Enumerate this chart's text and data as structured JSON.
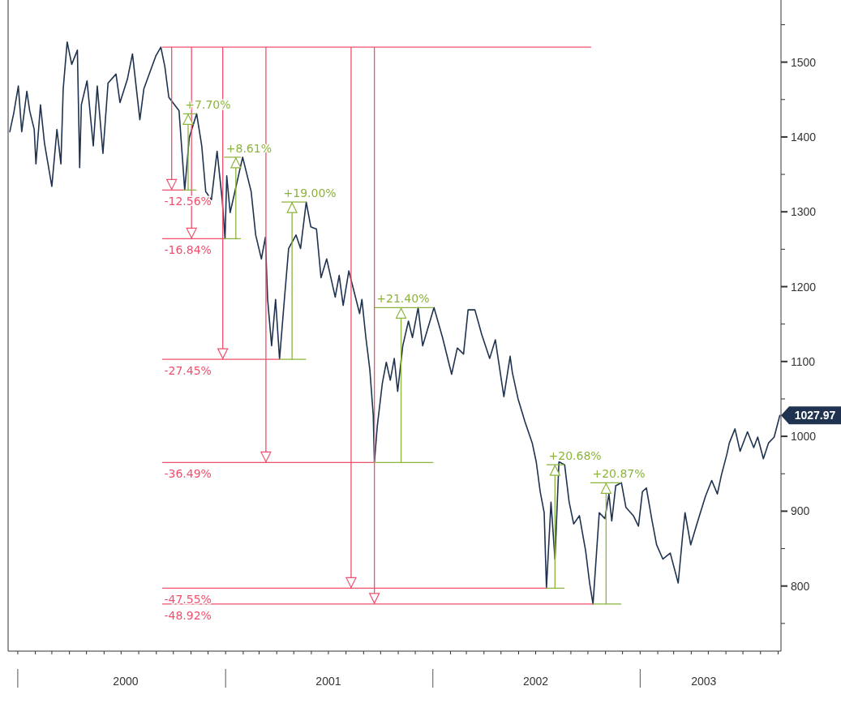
{
  "chart_data": {
    "type": "line",
    "grid": false,
    "xlim": [
      "1999-12-15",
      "2003-09-06"
    ],
    "xticks": [
      {
        "value": "2000-01-01",
        "label": null
      },
      {
        "value": "2000-07-09",
        "label": "2000"
      },
      {
        "value": "2001-01-01",
        "label": null
      },
      {
        "value": "2001-07-01",
        "label": "2001"
      },
      {
        "value": "2002-01-01",
        "label": null
      },
      {
        "value": "2002-07-01",
        "label": "2002"
      },
      {
        "value": "2003-01-01",
        "label": null
      },
      {
        "value": "2003-04-23",
        "label": "2003"
      }
    ],
    "ylim": [
      713,
      1583
    ],
    "yticks": [
      {
        "value": 750,
        "label": null
      },
      800,
      {
        "value": 850,
        "label": null
      },
      900,
      {
        "value": 950,
        "label": null
      },
      1000,
      {
        "value": 1050,
        "label": null
      },
      1100,
      {
        "value": 1150,
        "label": null
      },
      1200,
      {
        "value": 1250,
        "label": null
      },
      1300,
      {
        "value": 1350,
        "label": null
      },
      1400,
      {
        "value": 1450,
        "label": null
      },
      1500,
      {
        "value": 1550,
        "label": null
      }
    ],
    "series": [
      {
        "color": "#1f3350",
        "x": [
          "1999-12-18",
          "1999-12-25",
          "2000-01-02",
          "2000-01-08",
          "2000-01-17",
          "2000-01-22",
          "2000-01-30",
          "2000-02-02",
          "2000-02-10",
          "2000-02-17",
          "2000-03-01",
          "2000-03-10",
          "2000-03-17",
          "2000-03-21",
          "2000-03-28",
          "2000-04-05",
          "2000-04-15",
          "2000-04-19",
          "2000-04-22",
          "2000-05-02",
          "2000-05-13",
          "2000-05-20",
          "2000-05-30",
          "2000-06-08",
          "2000-06-22",
          "2000-06-29",
          "2000-07-12",
          "2000-07-21",
          "2000-08-03",
          "2000-08-10",
          "2000-08-19",
          "2000-08-31",
          "2000-09-09",
          "2000-09-16",
          "2000-09-23",
          "2000-10-11",
          "2000-10-21",
          "2000-10-29",
          "2000-11-11",
          "2000-11-20",
          "2000-11-27",
          "2000-12-07",
          "2000-12-17",
          "2000-12-26",
          "2000-12-31",
          "2001-01-03",
          "2001-01-09",
          "2001-01-31",
          "2001-02-15",
          "2001-02-23",
          "2001-03-05",
          "2001-03-12",
          "2001-03-16",
          "2001-03-23",
          "2001-03-30",
          "2001-04-06",
          "2001-04-13",
          "2001-04-22",
          "2001-05-05",
          "2001-05-13",
          "2001-05-23",
          "2001-05-31",
          "2001-06-10",
          "2001-06-18",
          "2001-06-28",
          "2001-07-13",
          "2001-07-20",
          "2001-07-27",
          "2001-08-06",
          "2001-08-15",
          "2001-08-25",
          "2001-08-29",
          "2001-09-05",
          "2001-09-12",
          "2001-09-18",
          "2001-09-20",
          "2001-09-25",
          "2001-10-04",
          "2001-10-11",
          "2001-10-18",
          "2001-10-25",
          "2001-10-31",
          "2001-11-09",
          "2001-11-19",
          "2001-11-26",
          "2001-12-06",
          "2001-12-14",
          "2002-01-03",
          "2002-01-18",
          "2002-02-03",
          "2002-02-13",
          "2002-02-24",
          "2002-03-04",
          "2002-03-16",
          "2002-03-28",
          "2002-04-11",
          "2002-04-21",
          "2002-05-06",
          "2002-05-17",
          "2002-05-21",
          "2002-05-31",
          "2002-06-12",
          "2002-06-25",
          "2002-07-02",
          "2002-07-09",
          "2002-07-16",
          "2002-07-20",
          "2002-07-28",
          "2002-08-04",
          "2002-08-11",
          "2002-08-21",
          "2002-08-29",
          "2002-09-06",
          "2002-09-16",
          "2002-09-27",
          "2002-10-04",
          "2002-10-10",
          "2002-10-21",
          "2002-10-31",
          "2002-11-07",
          "2002-11-12",
          "2002-11-19",
          "2002-11-29",
          "2002-12-07",
          "2002-12-20",
          "2002-12-29",
          "2003-01-05",
          "2003-01-12",
          "2003-01-22",
          "2003-01-30",
          "2003-02-10",
          "2003-02-23",
          "2003-03-09",
          "2003-03-17",
          "2003-03-21",
          "2003-03-31",
          "2003-04-11",
          "2003-04-26",
          "2003-05-07",
          "2003-05-17",
          "2003-05-24",
          "2003-06-03",
          "2003-06-07",
          "2003-06-17",
          "2003-06-26",
          "2003-07-09",
          "2003-07-20",
          "2003-07-27",
          "2003-08-06",
          "2003-08-15",
          "2003-08-25",
          "2003-09-04"
        ],
        "values": [
          1407,
          1432,
          1468,
          1407,
          1461,
          1435,
          1410,
          1364,
          1443,
          1392,
          1334,
          1410,
          1364,
          1464,
          1527,
          1497,
          1516,
          1359,
          1443,
          1475,
          1388,
          1468,
          1378,
          1472,
          1484,
          1446,
          1477,
          1511,
          1423,
          1464,
          1483,
          1508,
          1520,
          1494,
          1453,
          1435,
          1329,
          1399,
          1431,
          1388,
          1327,
          1316,
          1381,
          1316,
          1264,
          1348,
          1299,
          1373,
          1327,
          1269,
          1237,
          1266,
          1183,
          1121,
          1183,
          1103,
          1169,
          1251,
          1269,
          1251,
          1313,
          1280,
          1277,
          1212,
          1237,
          1186,
          1215,
          1175,
          1221,
          1194,
          1164,
          1183,
          1132,
          1089,
          1028,
          965,
          1013,
          1071,
          1099,
          1075,
          1104,
          1060,
          1121,
          1154,
          1132,
          1172,
          1121,
          1172,
          1132,
          1083,
          1118,
          1110,
          1169,
          1169,
          1136,
          1104,
          1129,
          1053,
          1107,
          1085,
          1050,
          1020,
          991,
          966,
          926,
          898,
          797,
          912,
          836,
          966,
          962,
          912,
          883,
          894,
          847,
          804,
          776,
          898,
          890,
          923,
          887,
          934,
          938,
          905,
          894,
          880,
          926,
          931,
          887,
          855,
          836,
          844,
          804,
          869,
          898,
          855,
          883,
          920,
          941,
          923,
          948,
          977,
          991,
          1010,
          980,
          1006,
          985,
          999,
          970,
          991,
          999,
          1028
        ]
      },
      {
        "color": "#f0506e",
        "type": "line",
        "x": [
          "2000-09-12",
          "2002-10-06",
          null,
          "2000-09-28",
          "2000-09-28",
          null,
          "2000-11-02",
          "2000-11-02",
          null,
          "2000-12-27",
          "2000-12-27",
          null,
          "2001-03-13",
          "2001-03-13",
          null,
          "2001-08-10",
          "2001-08-10",
          null,
          "2001-09-20",
          "2001-09-20",
          null,
          "2000-09-12",
          "2000-10-19",
          null,
          "2000-09-12",
          "2000-12-30",
          null,
          "2000-09-12",
          "2001-04-06",
          null,
          "2000-09-12",
          "2001-09-20",
          null,
          "2000-09-12",
          "2002-07-20",
          null,
          "2000-09-12",
          "2002-10-10"
        ],
        "values": [
          1520,
          1520,
          null,
          1520,
          1329,
          null,
          1520,
          1264,
          null,
          1520,
          1103,
          null,
          1520,
          965,
          null,
          1520,
          797,
          null,
          1520,
          776,
          null,
          1329,
          1329,
          null,
          1264,
          1264,
          null,
          1103,
          1103,
          null,
          965,
          965,
          null,
          797,
          797,
          null,
          776,
          776
        ]
      },
      {
        "color": "#8cb43c",
        "type": "line",
        "x": [
          "2000-10-27",
          "2000-10-27",
          null,
          "2001-01-19",
          "2001-01-19",
          null,
          "2001-04-28",
          "2001-04-28",
          null,
          "2001-11-06",
          "2001-11-06",
          null,
          "2002-08-04",
          "2002-08-04",
          null,
          "2002-11-02",
          "2002-11-02",
          null,
          "2000-10-19",
          "2000-11-10",
          null,
          "2000-12-30",
          "2001-01-27",
          null,
          "2001-04-10",
          "2001-05-22",
          null,
          "2001-09-21",
          "2002-01-01",
          null,
          "2002-07-21",
          "2002-08-20",
          null,
          "2002-10-06",
          "2002-11-28"
        ],
        "values": [
          1329,
          1431,
          null,
          1264,
          1373,
          null,
          1103,
          1313,
          null,
          965,
          1172,
          null,
          797,
          962,
          null,
          776,
          938,
          null,
          1431,
          1431,
          null,
          1373,
          1373,
          null,
          1313,
          1313,
          null,
          1172,
          1172,
          null,
          962,
          962,
          null,
          938,
          938
        ]
      },
      {
        "color": "#8cb43c",
        "type": "line",
        "x": [
          "2000-10-19",
          "2000-11-10",
          null,
          "2000-12-30",
          "2001-01-27",
          null,
          "2001-04-06",
          "2001-05-22",
          null,
          "2001-09-20",
          "2002-01-01",
          null,
          "2002-07-20",
          "2002-08-20",
          null,
          "2002-10-10",
          "2002-11-28"
        ],
        "values": [
          1329,
          1329,
          null,
          1264,
          1264,
          null,
          1103,
          1103,
          null,
          965,
          965,
          null,
          797,
          797,
          null,
          776,
          776
        ]
      }
    ],
    "annotations": [
      {
        "text": "-12.56%",
        "x": "2000-09-12",
        "y": 1329
      },
      {
        "text": "-16.84%",
        "x": "2000-09-12",
        "y": 1264
      },
      {
        "text": "-27.45%",
        "x": "2000-09-12",
        "y": 1103
      },
      {
        "text": "-36.49%",
        "x": "2000-09-12",
        "y": 965
      },
      {
        "text": "-47.55%",
        "x": "2000-09-12",
        "y": 797
      },
      {
        "text": "-48.92%",
        "x": "2000-09-12",
        "y": 776
      },
      {
        "text": "+7.70%",
        "x": "2000-10-19",
        "y": 1431
      },
      {
        "text": "+8.61%",
        "x": "2000-12-30",
        "y": 1373
      },
      {
        "text": "+19.00%",
        "x": "2001-04-10",
        "y": 1313
      },
      {
        "text": "+21.40%",
        "x": "2001-09-21",
        "y": 1172
      },
      {
        "text": "+20.68%",
        "x": "2002-07-21",
        "y": 962
      },
      {
        "text": "+20.87%",
        "x": "2002-10-06",
        "y": 938
      },
      {
        "text": "1027.97",
        "x": "2003-09-04",
        "y": 1027.97
      }
    ]
  }
}
